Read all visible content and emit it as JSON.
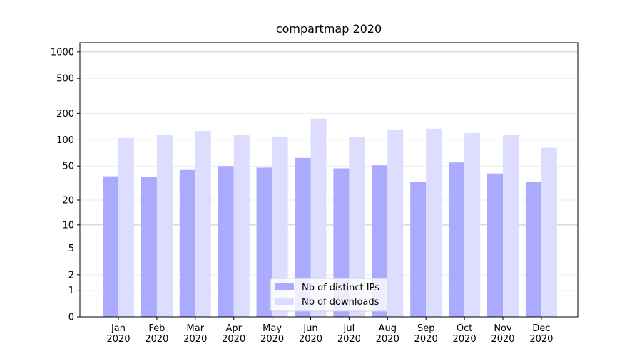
{
  "chart_data": {
    "type": "bar",
    "title": "compartmap 2020",
    "categories": [
      "Jan\n2020",
      "Feb\n2020",
      "Mar\n2020",
      "Apr\n2020",
      "May\n2020",
      "Jun\n2020",
      "Jul\n2020",
      "Aug\n2020",
      "Sep\n2020",
      "Oct\n2020",
      "Nov\n2020",
      "Dec\n2020"
    ],
    "series": [
      {
        "name": "Nb of distinct IPs",
        "color": "#aaaaff",
        "values": [
          38,
          37,
          45,
          50,
          48,
          62,
          47,
          51,
          33,
          55,
          41,
          33
        ]
      },
      {
        "name": "Nb of downloads",
        "color": "#ddddff",
        "values": [
          105,
          113,
          126,
          113,
          109,
          174,
          107,
          129,
          134,
          119,
          115,
          81
        ]
      }
    ],
    "yscale": "log1p",
    "ylim": [
      0,
      1270
    ],
    "yticks": [
      0,
      1,
      2,
      5,
      10,
      20,
      50,
      100,
      200,
      500,
      1000
    ],
    "grid": true,
    "legend": "lower center"
  }
}
